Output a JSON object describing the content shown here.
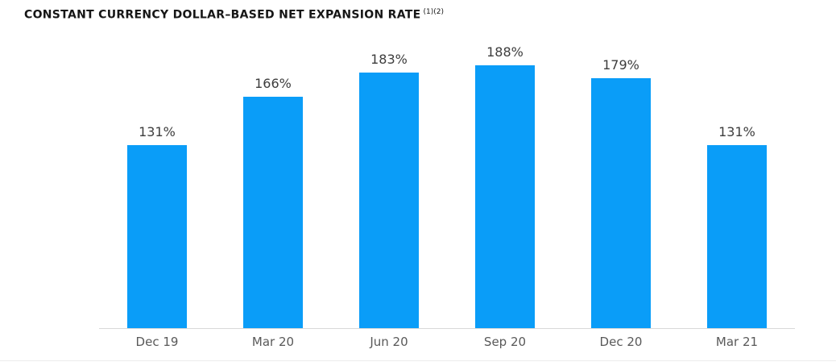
{
  "title": {
    "text": "CONSTANT CURRENCY DOLLAR–BASED NET EXPANSION RATE",
    "superscript": "(1)(2)"
  },
  "chart_data": {
    "type": "bar",
    "title": "CONSTANT CURRENCY DOLLAR–BASED NET EXPANSION RATE (1)(2)",
    "categories": [
      "Dec 19",
      "Mar 20",
      "Jun 20",
      "Sep 20",
      "Dec 20",
      "Mar 21"
    ],
    "values": [
      131,
      166,
      183,
      188,
      179,
      131
    ],
    "data_labels": [
      "131%",
      "166%",
      "183%",
      "188%",
      "179%",
      "131%"
    ],
    "xlabel": "",
    "ylabel": "",
    "ylim": [
      0,
      235
    ],
    "grid": false,
    "legend": false,
    "bar_color": "#0a9df8",
    "value_label_color": "#3d3d3d",
    "axis_label_color": "#595959",
    "axis_line_color": "#d9d9d9"
  }
}
